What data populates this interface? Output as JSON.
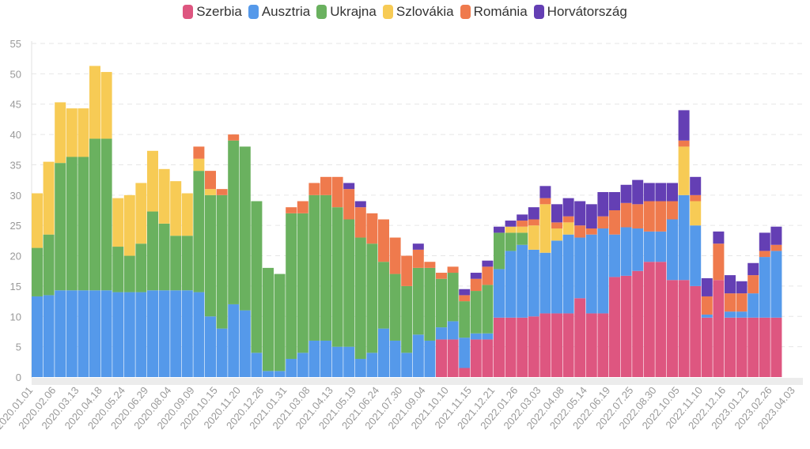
{
  "chart_data": {
    "type": "bar",
    "stacked": true,
    "title": "",
    "xlabel": "",
    "ylabel": "",
    "ylim": [
      0,
      55
    ],
    "yticks": [
      0,
      5,
      10,
      15,
      20,
      25,
      30,
      35,
      40,
      45,
      50,
      55
    ],
    "grid": true,
    "legend_position": "top-center",
    "bin_days": 18,
    "x_start": "2020.01.01",
    "x_tick_labels": [
      "2020.01.01",
      "2020.02.06",
      "2020.03.13",
      "2020.04.18",
      "2020.05.24",
      "2020.06.29",
      "2020.08.04",
      "2020.09.09",
      "2020.10.15",
      "2020.11.20",
      "2020.12.26",
      "2021.01.31",
      "2021.03.08",
      "2021.04.13",
      "2021.05.19",
      "2021.06.24",
      "2021.07.30",
      "2021.09.04",
      "2021.10.10",
      "2021.11.15",
      "2021.12.21",
      "2022.01.26",
      "2022.03.03",
      "2022.04.08",
      "2022.05.14",
      "2022.06.19",
      "2022.07.25",
      "2022.08.30",
      "2022.10.05",
      "2022.11.10",
      "2022.12.16",
      "2023.01.21",
      "2023.02.26",
      "2023.04.03"
    ],
    "series": [
      {
        "name": "Szerbia",
        "color": "#de5680",
        "values": [
          0,
          0,
          0,
          0,
          0,
          0,
          0,
          0,
          0,
          0,
          0,
          0,
          0,
          0,
          0,
          0,
          0,
          0,
          0,
          0,
          0,
          0,
          0,
          0,
          0,
          0,
          0,
          0,
          0,
          0,
          0,
          0,
          0,
          0,
          0,
          6.2,
          6.2,
          1.5,
          6.2,
          6.2,
          9.8,
          9.8,
          9.8,
          10,
          10.5,
          10.5,
          10.5,
          13,
          10.5,
          10.5,
          16.5,
          16.7,
          17.5,
          19,
          19,
          16,
          16,
          15,
          9.8,
          16,
          9.8,
          9.8,
          9.8,
          9.8,
          9.8
        ]
      },
      {
        "name": "Ausztria",
        "color": "#5599ea",
        "values": [
          13.3,
          13.5,
          14.3,
          14.3,
          14.3,
          14.3,
          14.3,
          14,
          14,
          14,
          14.3,
          14.3,
          14.3,
          14.3,
          14,
          10,
          8,
          12,
          11,
          4,
          1,
          1,
          3,
          4,
          6,
          6,
          5,
          5,
          3,
          4,
          8,
          6,
          4,
          7,
          6,
          2,
          3,
          5,
          1,
          1,
          8,
          11,
          12,
          11,
          10,
          12,
          13,
          10,
          13,
          14,
          7,
          8,
          7,
          5,
          5,
          10,
          14,
          10,
          0.5,
          0,
          1,
          1,
          4,
          10,
          11
        ]
      },
      {
        "name": "Ukrajna",
        "color": "#6ab15f",
        "values": [
          8,
          10,
          21,
          22,
          22,
          25,
          25,
          7.5,
          6,
          8,
          13,
          11,
          9,
          9,
          20,
          20,
          22,
          27,
          27,
          25,
          17,
          16,
          24,
          23,
          24,
          24,
          23,
          21,
          20,
          18,
          11,
          11,
          11,
          11,
          12,
          8,
          8,
          6,
          7,
          8,
          6,
          3,
          2,
          0,
          0,
          0,
          0,
          0,
          0,
          0,
          0,
          0,
          0,
          0,
          0,
          0,
          0,
          0,
          0,
          0,
          0,
          0,
          0,
          0,
          0
        ]
      },
      {
        "name": "Szlovákia",
        "color": "#f7cb55",
        "values": [
          9,
          12,
          10,
          8,
          8,
          12,
          11,
          8,
          10,
          10,
          10,
          9,
          9,
          7,
          2,
          1,
          0,
          0,
          0,
          0,
          0,
          0,
          0,
          0,
          0,
          0,
          0,
          0,
          0,
          0,
          0,
          0,
          0,
          0,
          0,
          0,
          0,
          0,
          0,
          0,
          0,
          1,
          1,
          4,
          8,
          2,
          2,
          0,
          0,
          0,
          0,
          0,
          0,
          0,
          0,
          0,
          8,
          4,
          0,
          0,
          0,
          0,
          0,
          0,
          0
        ]
      },
      {
        "name": "Románia",
        "color": "#ef7a4d",
        "values": [
          0,
          0,
          0,
          0,
          0,
          0,
          0,
          0,
          0,
          0,
          0,
          0,
          0,
          0,
          2,
          3,
          1,
          1,
          0,
          0,
          0,
          0,
          1,
          2,
          2,
          3,
          5,
          5,
          5,
          5,
          7,
          6,
          5,
          3,
          1,
          1,
          1,
          1,
          2,
          3,
          0,
          0,
          1,
          1,
          1,
          1,
          1,
          2,
          1,
          2,
          4,
          4,
          4,
          5,
          5,
          3,
          1,
          1,
          3,
          6,
          3,
          3,
          3,
          1,
          1
        ]
      },
      {
        "name": "Horvátország",
        "color": "#643fb4",
        "values": [
          0,
          0,
          0,
          0,
          0,
          0,
          0,
          0,
          0,
          0,
          0,
          0,
          0,
          0,
          0,
          0,
          0,
          0,
          0,
          0,
          0,
          0,
          0,
          0,
          0,
          0,
          0,
          1,
          1,
          0,
          0,
          0,
          0,
          1,
          0,
          0,
          0,
          1,
          1,
          1,
          1,
          1,
          1,
          2,
          2,
          3,
          3,
          4,
          4,
          4,
          3,
          3,
          4,
          3,
          3,
          3,
          5,
          3,
          3,
          2,
          3,
          2,
          2,
          3,
          3
        ]
      }
    ]
  }
}
